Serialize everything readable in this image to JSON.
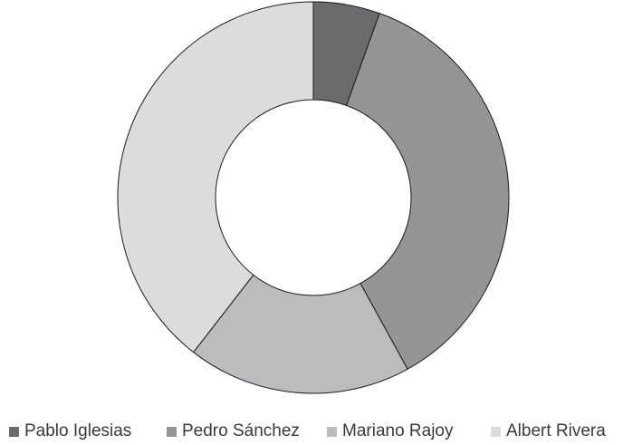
{
  "chart_data": {
    "type": "pie",
    "donut": true,
    "title": "",
    "categories": [
      "Pablo Iglesias",
      "Pedro Sánchez",
      "Mariano Rajoy",
      "Albert Rivera"
    ],
    "values": [
      5.5,
      36.5,
      18.5,
      39.5
    ],
    "colors": [
      "#6b6b6e",
      "#959598",
      "#bcbcbf",
      "#dcdcde"
    ],
    "legend_position": "bottom",
    "start_angle": "12-o'clock",
    "direction": "clockwise"
  }
}
